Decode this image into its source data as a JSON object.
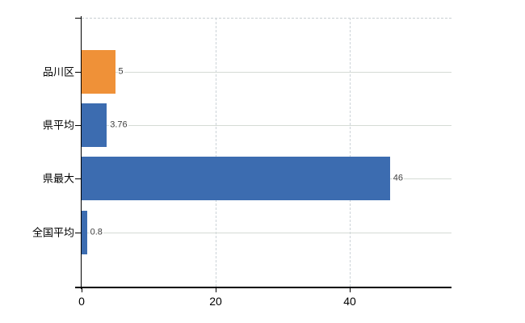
{
  "chart_data": {
    "type": "bar",
    "orientation": "horizontal",
    "title": "",
    "xlabel": "",
    "ylabel": "",
    "categories": [
      "品川区",
      "県平均",
      "県最大",
      "全国平均"
    ],
    "values": [
      5,
      3.76,
      46,
      0.8
    ],
    "value_labels": [
      "5",
      "3.76",
      "46",
      "0.8"
    ],
    "bar_colors": [
      "#ef9138",
      "#3c6cb0",
      "#3c6cb0",
      "#3c6cb0"
    ],
    "x_ticks": [
      0,
      20,
      40
    ],
    "x_tick_labels": [
      "0",
      "20",
      "40"
    ],
    "xlim": [
      0,
      55.2
    ],
    "grid": true,
    "gridline_color_horizontal": "#d5dbd5",
    "gridline_color_vertical": "#ccd3d8",
    "plot_top_border_color": "#c9cfd2",
    "axis_color": "#000000",
    "value_label_color": "#3f3f3f",
    "category_label_color": "#000000",
    "background_color": "#ffffff",
    "legend": false
  }
}
